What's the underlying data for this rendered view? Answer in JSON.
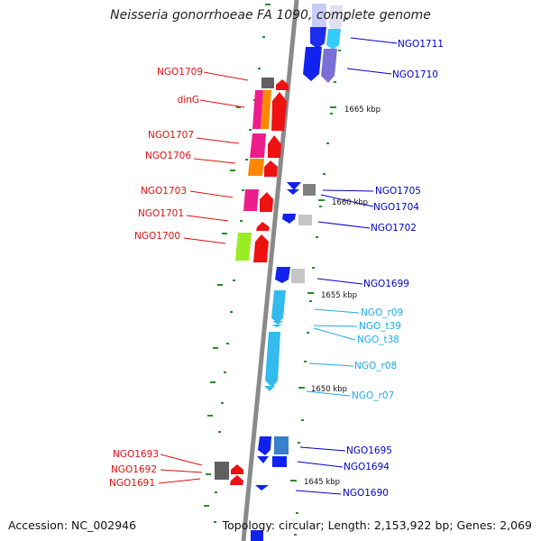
{
  "title": "Neisseria gonorrhoeae FA 1090, complete genome",
  "footer": {
    "accession": "Accession: NC_002946",
    "topology": "Topology: circular; Length: 2,153,922 bp; Genes: 2,069"
  },
  "colors": {
    "left_label": "#dd1111",
    "right_label": "#0000cc",
    "rna_label": "#22a8e8",
    "backbone": "#8a8a8a",
    "dots": "#2c8a2c"
  },
  "ticks": [
    "1665 kbp",
    "1660 kbp",
    "1655 kbp",
    "1650 kbp",
    "1645 kbp"
  ],
  "left_labels": [
    "NGO1709",
    "dinG",
    "NGO1707",
    "NGO1706",
    "NGO1703",
    "NGO1701",
    "NGO1700",
    "NGO1693",
    "NGO1692",
    "NGO1691"
  ],
  "right_labels": [
    "NGO1711",
    "NGO1710",
    "NGO1705",
    "NGO1704",
    "NGO1702",
    "NGO1699",
    "NGO1695",
    "NGO1694",
    "NGO1690"
  ],
  "rna_labels": [
    "NGO_r09",
    "NGO_t39",
    "NGO_t38",
    "NGO_r08",
    "NGO_r07"
  ]
}
